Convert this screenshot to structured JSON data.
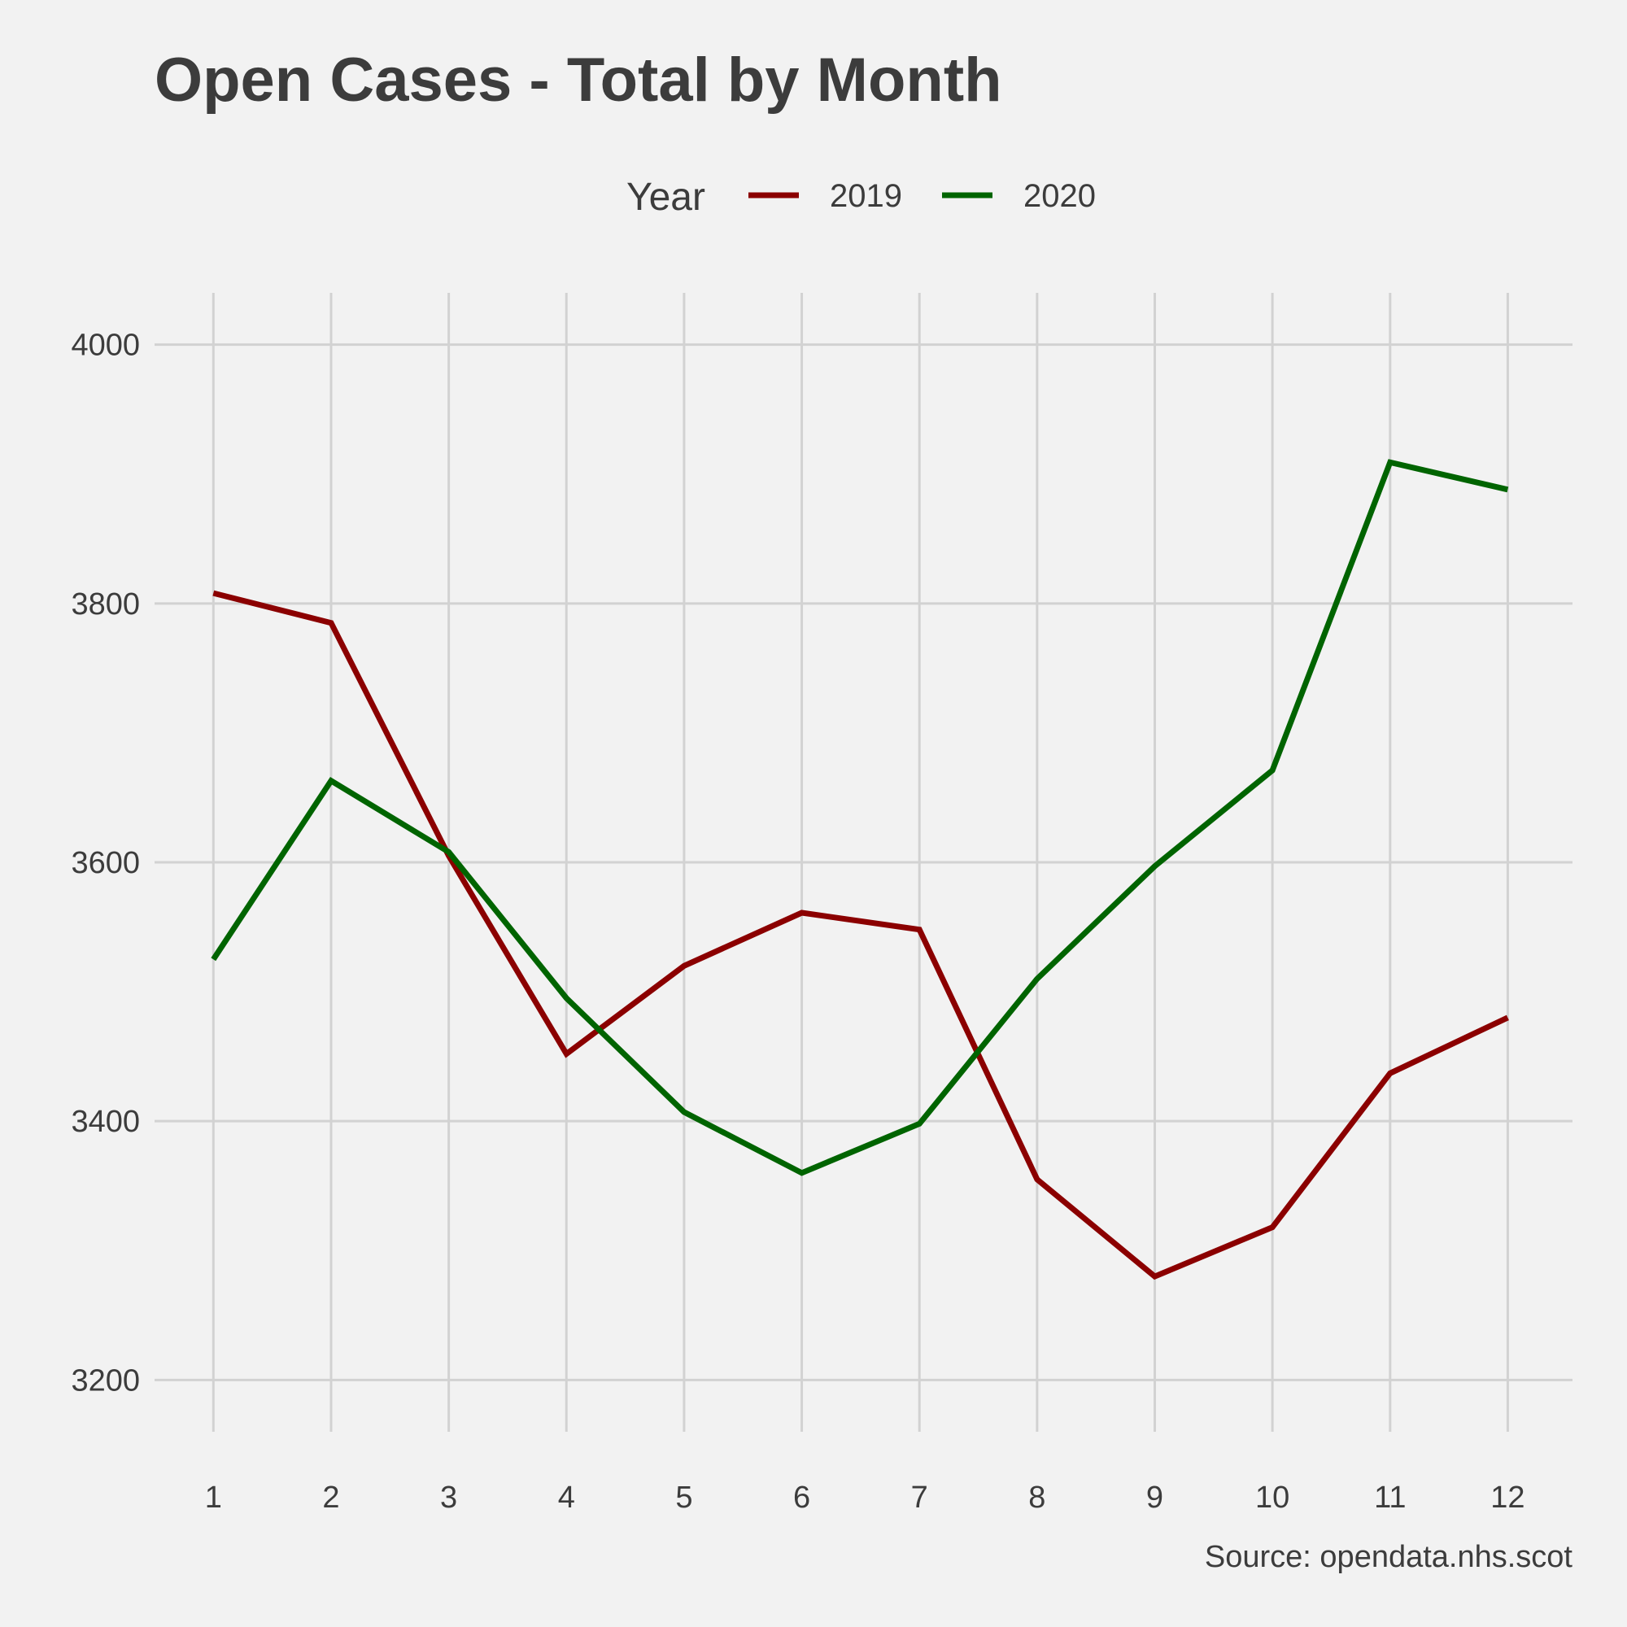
{
  "chart_data": {
    "type": "line",
    "title": "Open Cases - Total by Month",
    "caption": "Source: opendata.nhs.scot",
    "xlabel": "",
    "ylabel": "",
    "x": [
      1,
      2,
      3,
      4,
      5,
      6,
      7,
      8,
      9,
      10,
      11,
      12
    ],
    "xlim": [
      0.5,
      12.55
    ],
    "ylim": [
      3160,
      4040
    ],
    "yticks": [
      3200,
      3400,
      3600,
      3800,
      4000
    ],
    "grid": true,
    "legend": {
      "title": "Year",
      "position": "top"
    },
    "series": [
      {
        "name": "2019",
        "color": "#8b0000",
        "values": [
          3808,
          3785,
          3605,
          3452,
          3520,
          3561,
          3548,
          3355,
          3280,
          3318,
          3437,
          3480
        ]
      },
      {
        "name": "2020",
        "color": "#006400",
        "values": [
          3525,
          3663,
          3608,
          3495,
          3407,
          3360,
          3398,
          3510,
          3597,
          3671,
          3909,
          3888
        ]
      }
    ]
  }
}
